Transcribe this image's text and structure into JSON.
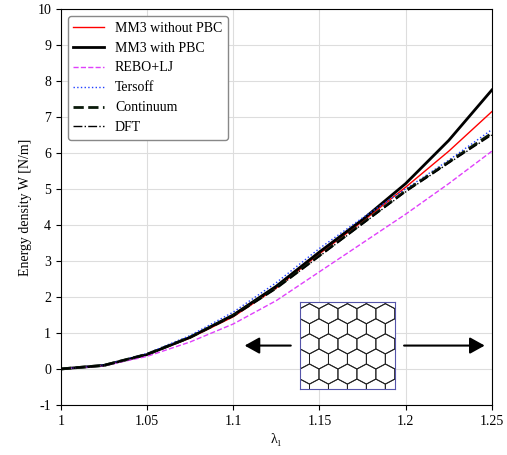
{
  "chart_data": {
    "type": "line",
    "x_label": "λ₁",
    "y_label": "Energy density W [N/m]",
    "x": [
      1.0,
      1.025,
      1.05,
      1.075,
      1.1,
      1.125,
      1.15,
      1.175,
      1.2,
      1.225,
      1.25
    ],
    "series": [
      {
        "name": "MM3 without PBC",
        "color": "#ff0000",
        "line_style": "solid",
        "values": [
          0,
          0.1,
          0.4,
          0.86,
          1.45,
          2.25,
          3.2,
          4.1,
          5.05,
          6.05,
          7.15
        ]
      },
      {
        "name": "MM3 with PBC",
        "color": "#000000",
        "line_style": "solid",
        "values": [
          0,
          0.1,
          0.4,
          0.88,
          1.5,
          2.3,
          3.25,
          4.15,
          5.15,
          6.35,
          7.75
        ]
      },
      {
        "name": "REBO+LJ",
        "color": "#e040fb",
        "line_style": "dashed",
        "values": [
          0,
          0.09,
          0.35,
          0.75,
          1.25,
          1.9,
          2.7,
          3.5,
          4.3,
          5.15,
          6.05
        ]
      },
      {
        "name": "Tersoff",
        "color": "#1f3fff",
        "line_style": "dotted",
        "values": [
          0,
          0.11,
          0.43,
          0.93,
          1.58,
          2.4,
          3.35,
          4.2,
          5.0,
          5.8,
          6.65
        ]
      },
      {
        "name": "Continuum",
        "color": "#0a1a0a",
        "line_style": "dashed",
        "values": [
          0,
          0.1,
          0.41,
          0.88,
          1.48,
          2.25,
          3.15,
          4.05,
          4.95,
          5.75,
          6.55
        ]
      },
      {
        "name": "DFT",
        "color": "#000000",
        "line_style": "dashdot",
        "values": [
          0,
          0.1,
          0.41,
          0.88,
          1.47,
          2.24,
          3.13,
          4.03,
          4.92,
          5.72,
          6.5
        ]
      }
    ],
    "xlim": [
      1,
      1.25
    ],
    "ylim": [
      -1,
      10
    ],
    "xticks": [
      1,
      1.05,
      1.1,
      1.15,
      1.2,
      1.25
    ],
    "yticks": [
      -1,
      0,
      1,
      2,
      3,
      4,
      5,
      6,
      7,
      8,
      9,
      10
    ],
    "grid": true,
    "legend": "upper left"
  }
}
